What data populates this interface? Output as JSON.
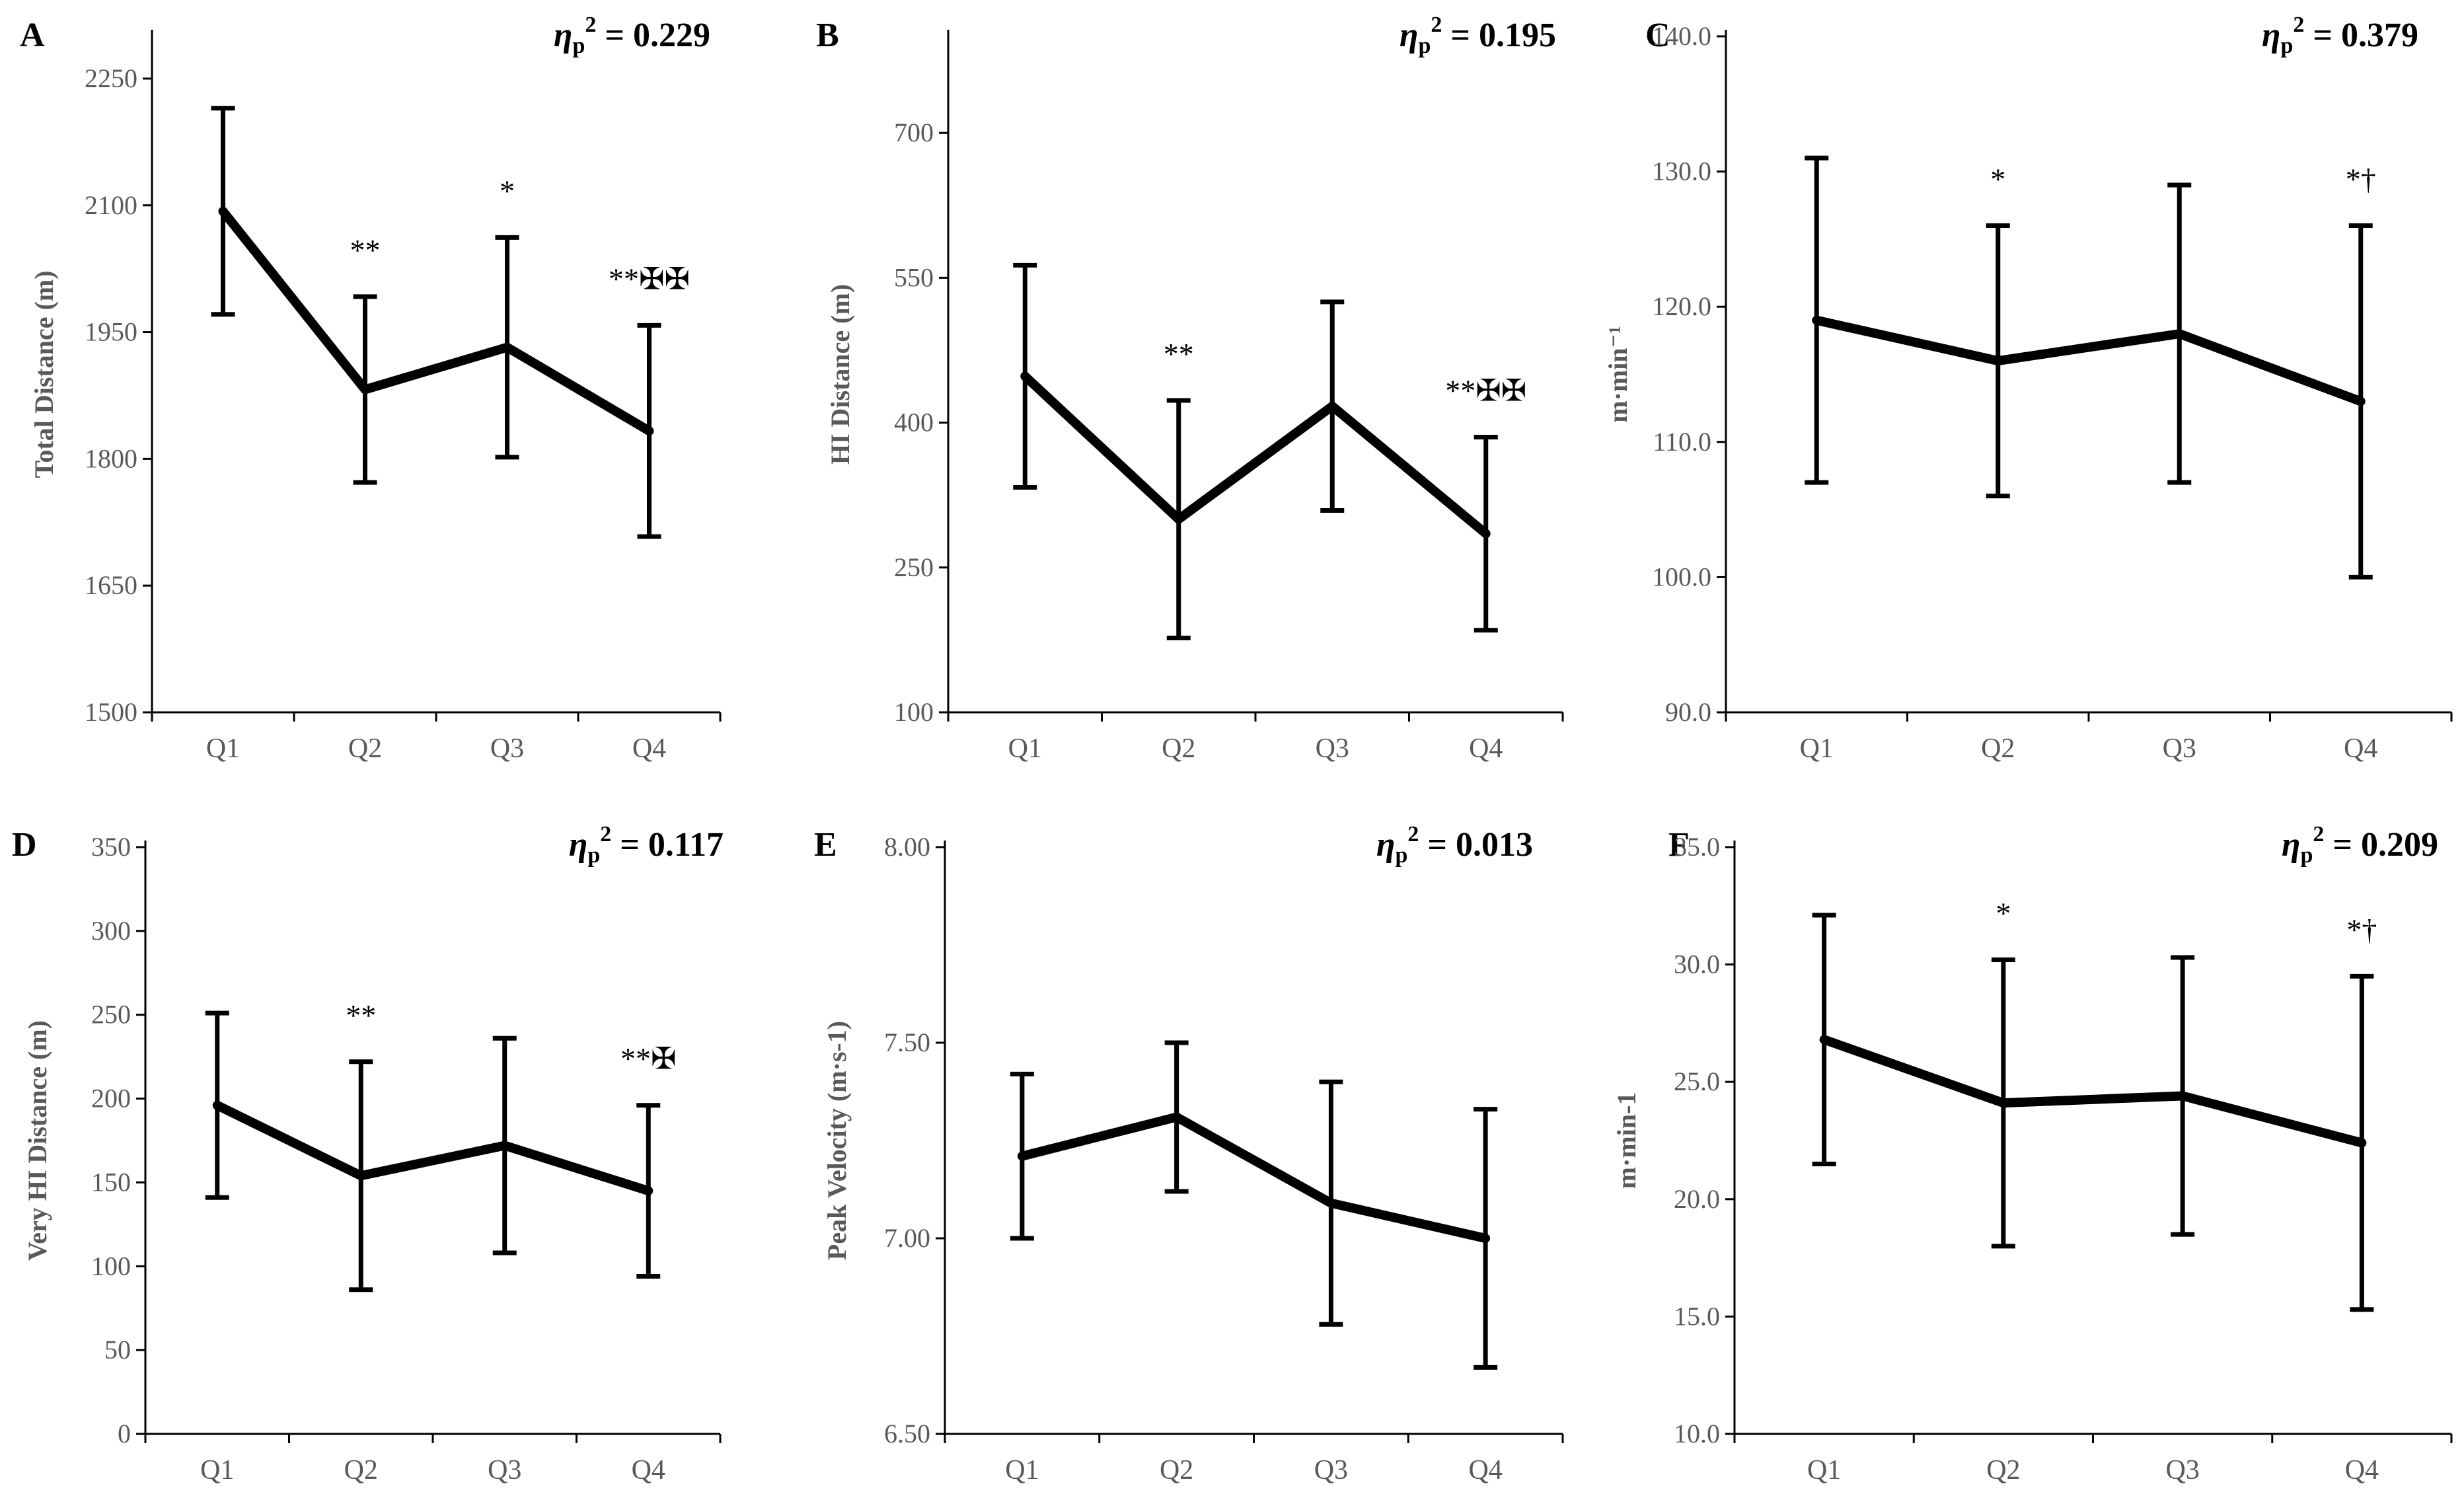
{
  "chart_data": [
    {
      "panel": "A",
      "type": "line",
      "annotation": "ηp² = 0.229",
      "ylabel": "Total Distance (m)",
      "categories": [
        "Q1",
        "Q2",
        "Q3",
        "Q4"
      ],
      "ylim": [
        1500,
        2300
      ],
      "yticks": [
        "1500",
        "1650",
        "1800",
        "1950",
        "2100",
        "2250"
      ],
      "values": [
        2093,
        1882,
        1932,
        1833
      ],
      "error": [
        122,
        110,
        130,
        125
      ],
      "significance": [
        "",
        "**",
        "*",
        "**✠✠"
      ]
    },
    {
      "panel": "B",
      "type": "line",
      "annotation": "ηp² = 0.195",
      "ylabel": "HI Distance (m)",
      "categories": [
        "Q1",
        "Q2",
        "Q3",
        "Q4"
      ],
      "ylim": [
        100,
        800
      ],
      "yticks": [
        "100",
        "250",
        "400",
        "550",
        "700"
      ],
      "values": [
        448,
        300,
        417,
        285
      ],
      "error": [
        115,
        123,
        108,
        100
      ],
      "significance": [
        "",
        "**",
        "",
        "**✠✠"
      ]
    },
    {
      "panel": "C",
      "type": "line",
      "annotation": "ηp² = 0.379",
      "ylabel": "m·min⁻¹",
      "categories": [
        "Q1",
        "Q2",
        "Q3",
        "Q4"
      ],
      "ylim": [
        90,
        140
      ],
      "yticks": [
        "90.0",
        "100.0",
        "110.0",
        "120.0",
        "130.0",
        "140.0"
      ],
      "values": [
        119,
        116,
        118,
        113
      ],
      "error": [
        12,
        10,
        11,
        13
      ],
      "significance": [
        "",
        "*",
        "",
        "*†"
      ]
    },
    {
      "panel": "D",
      "type": "line",
      "annotation": "ηp² = 0.117",
      "ylabel": "Very HI Distance (m)",
      "categories": [
        "Q1",
        "Q2",
        "Q3",
        "Q4"
      ],
      "ylim": [
        0,
        350
      ],
      "yticks": [
        "0",
        "50",
        "100",
        "150",
        "200",
        "250",
        "300",
        "350"
      ],
      "values": [
        196,
        154,
        172,
        145
      ],
      "error": [
        55,
        68,
        64,
        51
      ],
      "significance": [
        "",
        "**",
        "",
        "**✠"
      ]
    },
    {
      "panel": "E",
      "type": "line",
      "annotation": "ηp² = 0.013",
      "ylabel": "Peak Velocity (m·s-1)",
      "categories": [
        "Q1",
        "Q2",
        "Q3",
        "Q4"
      ],
      "ylim": [
        6.5,
        8.0
      ],
      "yticks": [
        "6.50",
        "7.00",
        "7.50",
        "8.00"
      ],
      "values": [
        7.21,
        7.31,
        7.09,
        7.0
      ],
      "error": [
        0.21,
        0.19,
        0.31,
        0.33
      ],
      "significance": [
        "",
        "",
        "",
        ""
      ]
    },
    {
      "panel": "F",
      "type": "line",
      "annotation": "ηp² = 0.209",
      "ylabel": "m·min-1",
      "categories": [
        "Q1",
        "Q2",
        "Q3",
        "Q4"
      ],
      "ylim": [
        10,
        35
      ],
      "yticks": [
        "10.0",
        "15.0",
        "20.0",
        "25.0",
        "30.0",
        "35.0"
      ],
      "values": [
        26.8,
        24.1,
        24.4,
        22.4
      ],
      "error": [
        5.3,
        6.1,
        5.9,
        7.1
      ],
      "significance": [
        "",
        "*",
        "",
        "*†"
      ]
    }
  ]
}
